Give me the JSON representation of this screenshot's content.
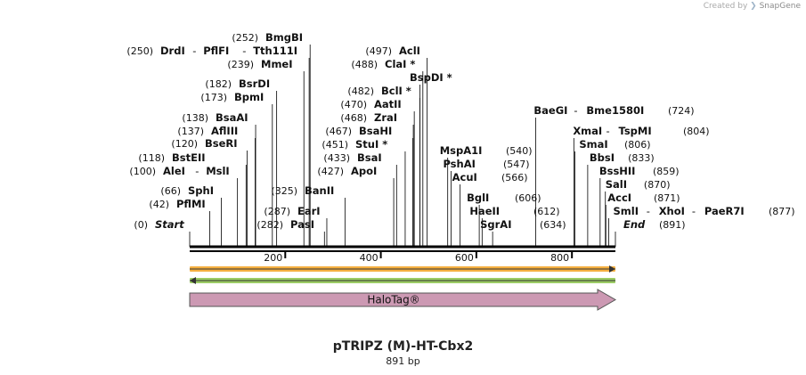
{
  "credit": {
    "prefix": "Created by",
    "brand": "SnapGene"
  },
  "plasmid": {
    "name": "pTRIPZ (M)-HT-Cbx2",
    "length_label": "891 bp",
    "length": 891
  },
  "axis_ticks": [
    200,
    400,
    600,
    800
  ],
  "features": [
    {
      "name": "HaloTag®",
      "start": 0,
      "end": 891,
      "direction": "forward",
      "color": "#cc99b3"
    }
  ],
  "orf_tracks": [
    {
      "direction": "forward",
      "color": "#f5b041",
      "start": 0,
      "end": 891
    },
    {
      "direction": "reverse",
      "color": "#9ccc65",
      "start": 0,
      "end": 891
    }
  ],
  "sites": [
    {
      "pos": 0,
      "pos_label": "(0)",
      "names": [
        "Start"
      ],
      "italic": true
    },
    {
      "pos": 42,
      "pos_label": "(42)",
      "names": [
        "PflMI"
      ]
    },
    {
      "pos": 66,
      "pos_label": "(66)",
      "names": [
        "SphI"
      ]
    },
    {
      "pos": 100,
      "pos_label": "(100)",
      "names": [
        "AleI",
        "MslI"
      ]
    },
    {
      "pos": 118,
      "pos_label": "(118)",
      "names": [
        "BstEII"
      ]
    },
    {
      "pos": 120,
      "pos_label": "(120)",
      "names": [
        "BseRI"
      ]
    },
    {
      "pos": 137,
      "pos_label": "(137)",
      "names": [
        "AflIII"
      ]
    },
    {
      "pos": 138,
      "pos_label": "(138)",
      "names": [
        "BsaAI"
      ]
    },
    {
      "pos": 173,
      "pos_label": "(173)",
      "names": [
        "BpmI"
      ]
    },
    {
      "pos": 182,
      "pos_label": "(182)",
      "names": [
        "BsrDI"
      ]
    },
    {
      "pos": 239,
      "pos_label": "(239)",
      "names": [
        "MmeI"
      ]
    },
    {
      "pos": 250,
      "pos_label": "(250)",
      "names": [
        "DrdI",
        "PflFI",
        "Tth111I"
      ]
    },
    {
      "pos": 252,
      "pos_label": "(252)",
      "names": [
        "BmgBI"
      ]
    },
    {
      "pos": 282,
      "pos_label": "(282)",
      "names": [
        "PasI"
      ]
    },
    {
      "pos": 287,
      "pos_label": "(287)",
      "names": [
        "EarI"
      ]
    },
    {
      "pos": 325,
      "pos_label": "(325)",
      "names": [
        "BanII"
      ]
    },
    {
      "pos": 427,
      "pos_label": "(427)",
      "names": [
        "ApoI"
      ]
    },
    {
      "pos": 433,
      "pos_label": "(433)",
      "names": [
        "BsaI"
      ]
    },
    {
      "pos": 451,
      "pos_label": "(451)",
      "names": [
        "StuI *"
      ]
    },
    {
      "pos": 467,
      "pos_label": "(467)",
      "names": [
        "BsaHI"
      ]
    },
    {
      "pos": 468,
      "pos_label": "(468)",
      "names": [
        "ZraI"
      ]
    },
    {
      "pos": 470,
      "pos_label": "(470)",
      "names": [
        "AatII"
      ]
    },
    {
      "pos": 482,
      "pos_label": "(482)",
      "names": [
        "BclI *"
      ]
    },
    {
      "pos": 482,
      "pos_label": "",
      "names": [
        "BspDI *"
      ]
    },
    {
      "pos": 488,
      "pos_label": "(488)",
      "names": [
        "ClaI *"
      ]
    },
    {
      "pos": 497,
      "pos_label": "(497)",
      "names": [
        "AclI"
      ]
    },
    {
      "pos": 540,
      "pos_label": "(540)",
      "names": [
        "MspA1I"
      ]
    },
    {
      "pos": 547,
      "pos_label": "(547)",
      "names": [
        "PshAI"
      ]
    },
    {
      "pos": 566,
      "pos_label": "(566)",
      "names": [
        "AcuI"
      ]
    },
    {
      "pos": 606,
      "pos_label": "(606)",
      "names": [
        "BglI"
      ]
    },
    {
      "pos": 612,
      "pos_label": "(612)",
      "names": [
        "HaeII"
      ]
    },
    {
      "pos": 634,
      "pos_label": "(634)",
      "names": [
        "SgrAI"
      ]
    },
    {
      "pos": 724,
      "pos_label": "(724)",
      "names": [
        "BaeGI",
        "Bme1580I"
      ]
    },
    {
      "pos": 804,
      "pos_label": "(804)",
      "names": [
        "XmaI",
        "TspMI"
      ]
    },
    {
      "pos": 806,
      "pos_label": "(806)",
      "names": [
        "SmaI"
      ]
    },
    {
      "pos": 833,
      "pos_label": "(833)",
      "names": [
        "BbsI"
      ]
    },
    {
      "pos": 859,
      "pos_label": "(859)",
      "names": [
        "BssHII"
      ]
    },
    {
      "pos": 870,
      "pos_label": "(870)",
      "names": [
        "SalI"
      ]
    },
    {
      "pos": 871,
      "pos_label": "(871)",
      "names": [
        "AccI"
      ]
    },
    {
      "pos": 877,
      "pos_label": "(877)",
      "names": [
        "SmlI",
        "XhoI",
        "PaeR7I"
      ]
    },
    {
      "pos": 891,
      "pos_label": "(891)",
      "names": [
        "End"
      ],
      "italic": true
    }
  ]
}
